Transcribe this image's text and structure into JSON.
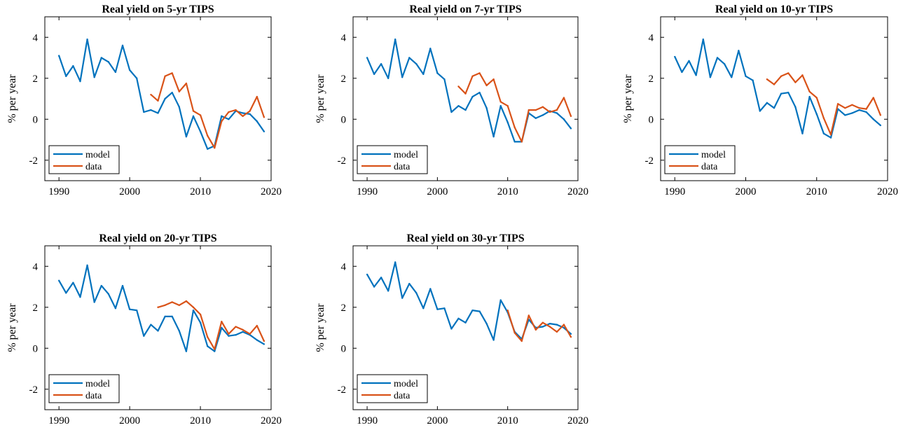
{
  "figure": {
    "ylabel": "% per year",
    "legend_location": "lower-left"
  },
  "colors": {
    "model": "#0072BD",
    "data": "#D95319"
  },
  "chart_data": [
    {
      "type": "line",
      "title": "Real yield on 5-yr TIPS",
      "xlabel": "",
      "ylabel": "% per year",
      "xlim": [
        1988,
        2020
      ],
      "ylim": [
        -3,
        5
      ],
      "xticks": [
        1990,
        2000,
        2010,
        2020
      ],
      "yticks": [
        4,
        2,
        0,
        -2
      ],
      "legend": "lower-left",
      "series": [
        {
          "name": "model",
          "x": [
            1990,
            1991,
            1992,
            1993,
            1994,
            1995,
            1996,
            1997,
            1998,
            1999,
            2000,
            2001,
            2002,
            2003,
            2004,
            2005,
            2006,
            2007,
            2008,
            2009,
            2010,
            2011,
            2012,
            2013,
            2014,
            2015,
            2016,
            2017,
            2018,
            2019
          ],
          "values": [
            3.1,
            2.1,
            2.6,
            1.85,
            3.9,
            2.05,
            3.0,
            2.8,
            2.3,
            3.6,
            2.4,
            2.0,
            0.35,
            0.45,
            0.3,
            1.0,
            1.3,
            0.6,
            -0.85,
            0.15,
            -0.6,
            -1.45,
            -1.3,
            0.15,
            0.0,
            0.4,
            0.3,
            0.25,
            -0.1,
            -0.6
          ]
        },
        {
          "name": "data",
          "x": [
            2003,
            2004,
            2005,
            2006,
            2007,
            2008,
            2009,
            2010,
            2011,
            2012,
            2013,
            2014,
            2015,
            2016,
            2017,
            2018,
            2019
          ],
          "values": [
            1.2,
            0.9,
            2.1,
            2.25,
            1.35,
            1.75,
            0.4,
            0.2,
            -0.8,
            -1.4,
            -0.1,
            0.35,
            0.45,
            0.15,
            0.4,
            1.1,
            0.1
          ]
        }
      ]
    },
    {
      "type": "line",
      "title": "Real yield on 7-yr TIPS",
      "xlabel": "",
      "ylabel": "% per year",
      "xlim": [
        1988,
        2020
      ],
      "ylim": [
        -3,
        5
      ],
      "xticks": [
        1990,
        2000,
        2010,
        2020
      ],
      "yticks": [
        4,
        2,
        0,
        -2
      ],
      "legend": "lower-left",
      "series": [
        {
          "name": "model",
          "x": [
            1990,
            1991,
            1992,
            1993,
            1994,
            1995,
            1996,
            1997,
            1998,
            1999,
            2000,
            2001,
            2002,
            2003,
            2004,
            2005,
            2006,
            2007,
            2008,
            2009,
            2010,
            2011,
            2012,
            2013,
            2014,
            2015,
            2016,
            2017,
            2018,
            2019
          ],
          "values": [
            3.0,
            2.2,
            2.7,
            2.0,
            3.9,
            2.05,
            3.0,
            2.7,
            2.2,
            3.45,
            2.25,
            1.95,
            0.35,
            0.65,
            0.45,
            1.1,
            1.3,
            0.55,
            -0.85,
            0.65,
            -0.15,
            -1.1,
            -1.1,
            0.3,
            0.05,
            0.2,
            0.4,
            0.3,
            0.0,
            -0.45
          ]
        },
        {
          "name": "data",
          "x": [
            2003,
            2004,
            2005,
            2006,
            2007,
            2008,
            2009,
            2010,
            2011,
            2012,
            2013,
            2014,
            2015,
            2016,
            2017,
            2018,
            2019
          ],
          "values": [
            1.6,
            1.25,
            2.1,
            2.25,
            1.65,
            1.95,
            0.85,
            0.65,
            -0.4,
            -1.1,
            0.45,
            0.45,
            0.6,
            0.35,
            0.45,
            1.05,
            0.15
          ]
        }
      ]
    },
    {
      "type": "line",
      "title": "Real yield on 10-yr TIPS",
      "xlabel": "",
      "ylabel": "% per year",
      "xlim": [
        1988,
        2020
      ],
      "ylim": [
        -3,
        5
      ],
      "xticks": [
        1990,
        2000,
        2010,
        2020
      ],
      "yticks": [
        4,
        2,
        0,
        -2
      ],
      "legend": "lower-left",
      "series": [
        {
          "name": "model",
          "x": [
            1990,
            1991,
            1992,
            1993,
            1994,
            1995,
            1996,
            1997,
            1998,
            1999,
            2000,
            2001,
            2002,
            2003,
            2004,
            2005,
            2006,
            2007,
            2008,
            2009,
            2010,
            2011,
            2012,
            2013,
            2014,
            2015,
            2016,
            2017,
            2018,
            2019
          ],
          "values": [
            3.05,
            2.3,
            2.85,
            2.15,
            3.9,
            2.05,
            3.0,
            2.7,
            2.05,
            3.35,
            2.1,
            1.9,
            0.4,
            0.8,
            0.55,
            1.25,
            1.3,
            0.6,
            -0.7,
            1.1,
            0.25,
            -0.7,
            -0.9,
            0.5,
            0.2,
            0.3,
            0.45,
            0.35,
            0.0,
            -0.3
          ]
        },
        {
          "name": "data",
          "x": [
            2003,
            2004,
            2005,
            2006,
            2007,
            2008,
            2009,
            2010,
            2011,
            2012,
            2013,
            2014,
            2015,
            2016,
            2017,
            2018,
            2019
          ],
          "values": [
            1.95,
            1.7,
            2.1,
            2.25,
            1.8,
            2.15,
            1.35,
            1.05,
            0.05,
            -0.75,
            0.75,
            0.55,
            0.7,
            0.55,
            0.5,
            1.05,
            0.2
          ]
        }
      ]
    },
    {
      "type": "line",
      "title": "Real yield on 20-yr TIPS",
      "xlabel": "",
      "ylabel": "% per year",
      "xlim": [
        1988,
        2020
      ],
      "ylim": [
        -3,
        5
      ],
      "xticks": [
        1990,
        2000,
        2010,
        2020
      ],
      "yticks": [
        4,
        2,
        0,
        -2
      ],
      "legend": "lower-left",
      "series": [
        {
          "name": "model",
          "x": [
            1990,
            1991,
            1992,
            1993,
            1994,
            1995,
            1996,
            1997,
            1998,
            1999,
            2000,
            2001,
            2002,
            2003,
            2004,
            2005,
            2006,
            2007,
            2008,
            2009,
            2010,
            2011,
            2012,
            2013,
            2014,
            2015,
            2016,
            2017,
            2018,
            2019
          ],
          "values": [
            3.3,
            2.7,
            3.2,
            2.5,
            4.05,
            2.25,
            3.05,
            2.65,
            1.95,
            3.05,
            1.9,
            1.85,
            0.6,
            1.15,
            0.85,
            1.55,
            1.55,
            0.85,
            -0.15,
            1.85,
            1.25,
            0.1,
            -0.15,
            1.0,
            0.6,
            0.65,
            0.8,
            0.65,
            0.4,
            0.2
          ]
        },
        {
          "name": "data",
          "x": [
            2004,
            2005,
            2006,
            2007,
            2008,
            2009,
            2010,
            2011,
            2012,
            2013,
            2014,
            2015,
            2016,
            2017,
            2018,
            2019
          ],
          "values": [
            2.0,
            2.1,
            2.25,
            2.1,
            2.3,
            2.0,
            1.65,
            0.55,
            -0.05,
            1.3,
            0.7,
            1.05,
            0.9,
            0.7,
            1.1,
            0.35
          ]
        }
      ]
    },
    {
      "type": "line",
      "title": "Real yield on 30-yr TIPS",
      "xlabel": "",
      "ylabel": "% per year",
      "xlim": [
        1988,
        2020
      ],
      "ylim": [
        -3,
        5
      ],
      "xticks": [
        1990,
        2000,
        2010,
        2020
      ],
      "yticks": [
        4,
        2,
        0,
        -2
      ],
      "legend": "lower-left",
      "series": [
        {
          "name": "model",
          "x": [
            1990,
            1991,
            1992,
            1993,
            1994,
            1995,
            1996,
            1997,
            1998,
            1999,
            2000,
            2001,
            2002,
            2003,
            2004,
            2005,
            2006,
            2007,
            2008,
            2009,
            2010,
            2011,
            2012,
            2013,
            2014,
            2015,
            2016,
            2017,
            2018,
            2019
          ],
          "values": [
            3.6,
            3.0,
            3.45,
            2.8,
            4.2,
            2.45,
            3.15,
            2.7,
            1.95,
            2.9,
            1.9,
            1.95,
            0.95,
            1.45,
            1.25,
            1.85,
            1.8,
            1.2,
            0.4,
            2.35,
            1.75,
            0.8,
            0.45,
            1.4,
            1.0,
            1.05,
            1.2,
            1.15,
            1.0,
            0.7
          ]
        },
        {
          "name": "data",
          "x": [
            2010,
            2011,
            2012,
            2013,
            2014,
            2015,
            2016,
            2017,
            2018,
            2019
          ],
          "values": [
            1.85,
            0.75,
            0.35,
            1.6,
            0.9,
            1.25,
            1.05,
            0.8,
            1.15,
            0.55
          ]
        }
      ]
    }
  ]
}
